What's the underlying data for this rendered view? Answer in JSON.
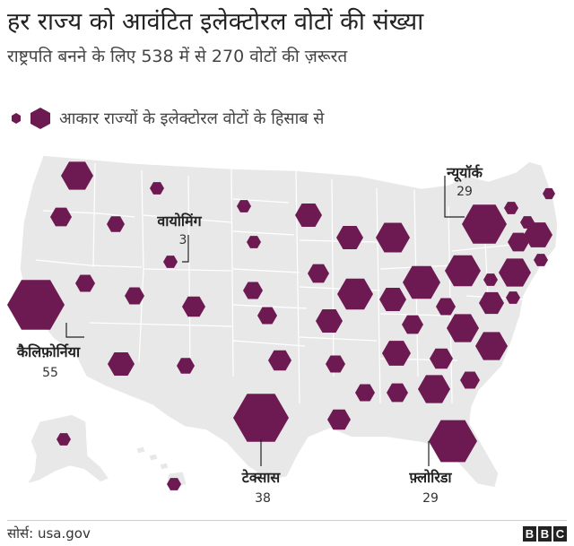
{
  "header": {
    "title": "हर राज्य को आवंटित इलेक्टोरल वोटों की संख्या",
    "subtitle": "राष्ट्रपति बनने के लिए 538 में से 270 वोटों की ज़रूरत"
  },
  "legend": {
    "text": "आकार राज्यों के इलेक्टोरल वोटों के हिसाब से"
  },
  "map": {
    "hex_color": "#6e1a52",
    "land_color": "#e8e8e8",
    "border_color": "#ffffff",
    "callouts": [
      {
        "name": "वायोमिंग",
        "value": "3"
      },
      {
        "name": "न्यूयॉर्क",
        "value": "29"
      },
      {
        "name": "कैलिफ़ोर्निया",
        "value": "55"
      },
      {
        "name": "टेक्सास",
        "value": "38"
      },
      {
        "name": "फ़्लोरिडा",
        "value": "29"
      }
    ]
  },
  "footer": {
    "source": "सोर्स: usa.gov",
    "brand": [
      "B",
      "B",
      "C"
    ]
  }
}
